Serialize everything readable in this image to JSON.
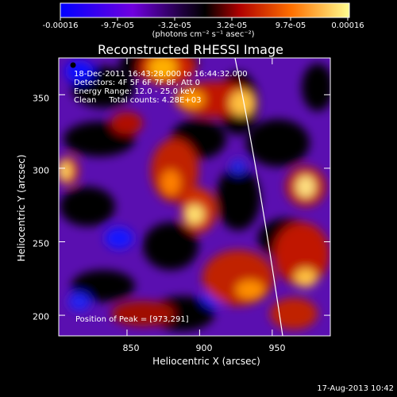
{
  "colorbar": {
    "tick_labels": [
      "-0.00016",
      "-9.7e-05",
      "-3.2e-05",
      "3.2e-05",
      "9.7e-05",
      "0.00016"
    ],
    "units_label": "(photons cm⁻² s⁻¹ asec⁻²)"
  },
  "chart_data": {
    "type": "heatmap",
    "title": "Reconstructed RHESSI Image",
    "xlabel": "Heliocentric X (arcsec)",
    "ylabel": "Heliocentric Y (arcsec)",
    "xlim": [
      803,
      990
    ],
    "ylim": [
      186,
      375
    ],
    "x_ticks": [
      850,
      900,
      950
    ],
    "y_ticks": [
      200,
      250,
      300,
      350
    ],
    "value_range": [
      -0.00016,
      0.00016
    ],
    "colormap": [
      "#0000ff",
      "#6a00d8",
      "#000000",
      "#c00000",
      "#ff8000",
      "#ffff80"
    ],
    "info_lines": [
      "18-Dec-2011 16:43:28.000 to 16:44:32.000",
      "Detectors: 4F 5F 6F 7F 8F, Att 0",
      "Energy Range: 12.0 - 25.0 keV",
      "Clean     Total counts: 4.28E+03"
    ],
    "peak_label": "Position of Peak = [973,291]",
    "peak": [
      973,
      291
    ],
    "grid": false
  },
  "timestamp": "17-Aug-2013 10:42"
}
